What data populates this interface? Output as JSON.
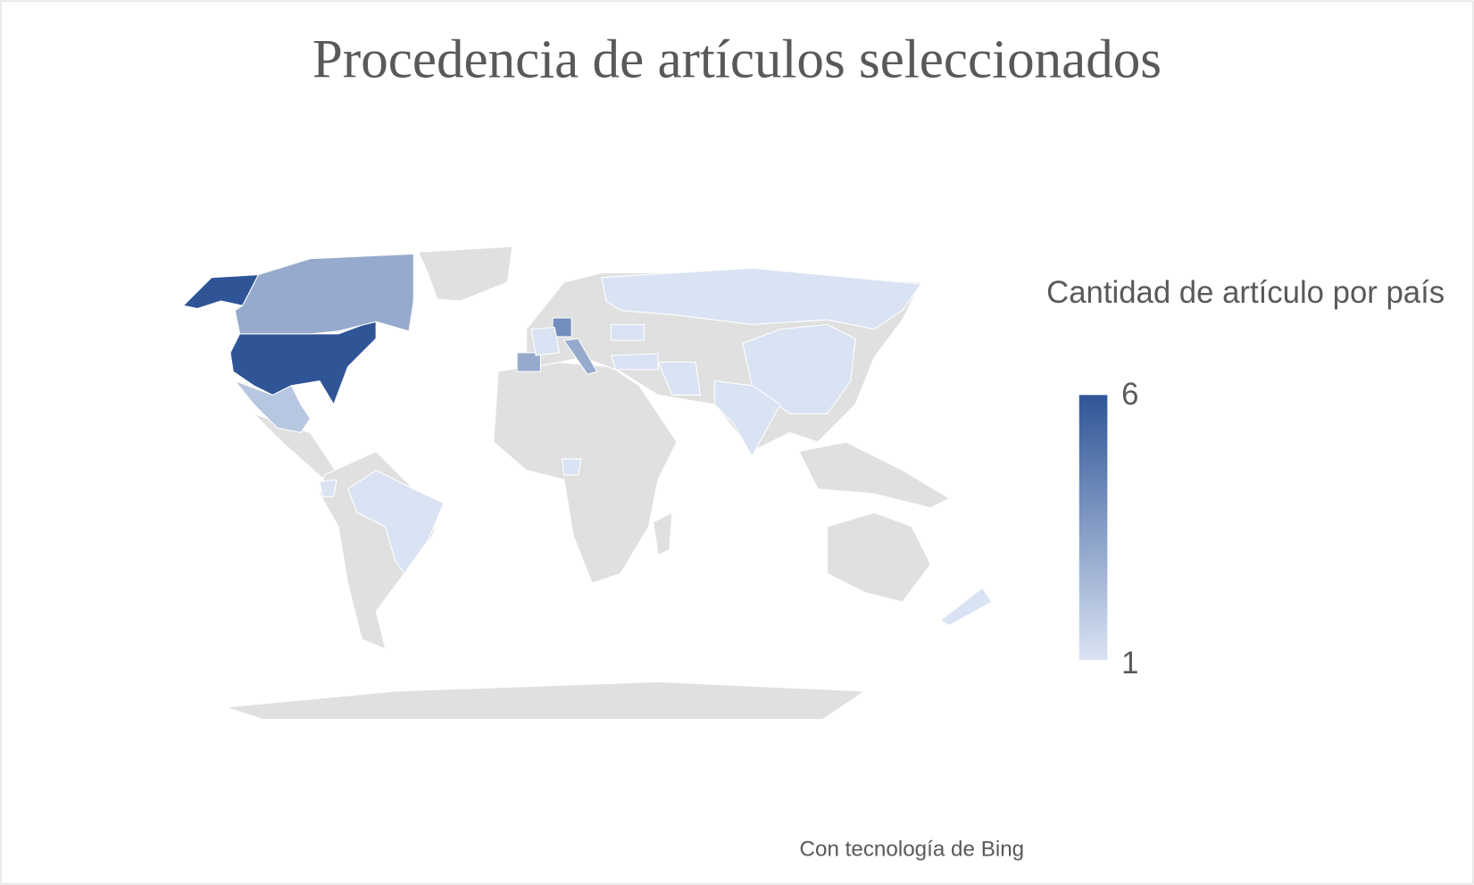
{
  "chart_data": {
    "type": "choropleth",
    "title": "Procedencia de artículos seleccionados",
    "values": [
      6,
      6,
      3,
      2,
      1,
      1,
      1,
      1,
      1,
      1,
      1,
      1,
      4,
      3,
      3,
      1,
      1,
      1
    ],
    "colors": [
      "#dae3f3",
      "#2f5597"
    ],
    "land_color": "#e0e0e0",
    "legend": {
      "title": "Cantidad de artículo por país",
      "ticks": [
        1,
        6
      ]
    },
    "attribution": "Con tecnología de Bing"
  }
}
